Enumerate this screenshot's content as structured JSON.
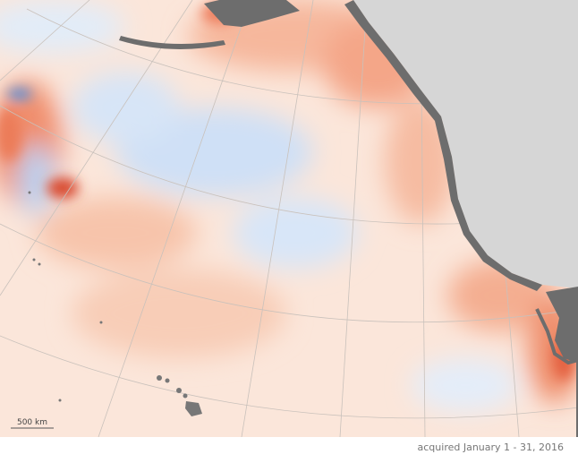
{
  "scale_bar": {
    "label": "500 km"
  },
  "caption": "acquired January 1 - 31, 2016"
}
